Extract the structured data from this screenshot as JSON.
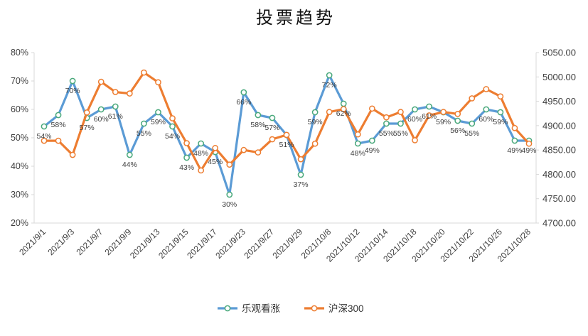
{
  "chart_data": {
    "type": "line",
    "title": "投票趋势",
    "x_tick_labels": [
      "2021/9/1",
      "2021/9/3",
      "2021/9/7",
      "2021/9/9",
      "2021/9/13",
      "2021/9/15",
      "2021/9/17",
      "2021/9/23",
      "2021/9/27",
      "2021/9/29",
      "2021/10/8",
      "2021/10/12",
      "2021/10/14",
      "2021/10/18",
      "2021/10/20",
      "2021/10/22",
      "2021/10/26",
      "2021/10/28"
    ],
    "categories": [
      "2021/9/1",
      "2021/9/2",
      "2021/9/3",
      "2021/9/6",
      "2021/9/7",
      "2021/9/8",
      "2021/9/9",
      "2021/9/10",
      "2021/9/13",
      "2021/9/14",
      "2021/9/15",
      "2021/9/16",
      "2021/9/17",
      "2021/9/22",
      "2021/9/23",
      "2021/9/24",
      "2021/9/27",
      "2021/9/28",
      "2021/9/29",
      "2021/9/30",
      "2021/10/8",
      "2021/10/11",
      "2021/10/12",
      "2021/10/13",
      "2021/10/14",
      "2021/10/15",
      "2021/10/18",
      "2021/10/19",
      "2021/10/20",
      "2021/10/21",
      "2021/10/22",
      "2021/10/25",
      "2021/10/26",
      "2021/10/27",
      "2021/10/28"
    ],
    "x_tick_every": 2,
    "series": [
      {
        "name": "乐观看涨",
        "axis": "left",
        "unit": "%",
        "color": "#5B9BD5",
        "marker_color": "#4AA97C",
        "show_labels": true,
        "values": [
          54,
          58,
          70,
          57,
          60,
          61,
          44,
          55,
          59,
          54,
          43,
          48,
          45,
          30,
          66,
          58,
          57,
          51,
          37,
          59,
          72,
          62,
          48,
          49,
          55,
          55,
          60,
          61,
          59,
          56,
          55,
          60,
          59,
          49,
          49
        ]
      },
      {
        "name": "沪深300",
        "axis": "right",
        "color": "#ED7D31",
        "marker_color": "#ED7D31",
        "show_labels": false,
        "values": [
          4869,
          4869,
          4840,
          4927,
          4990,
          4969,
          4966,
          5009,
          4989,
          4915,
          4864,
          4808,
          4854,
          4820,
          4850,
          4845,
          4872,
          4881,
          4831,
          4863,
          4928,
          4934,
          4882,
          4935,
          4917,
          4928,
          4870,
          4921,
          4928,
          4924,
          4956,
          4975,
          4960,
          4895,
          4863
        ]
      }
    ],
    "axes": {
      "left": {
        "min": 20,
        "max": 80,
        "step": 10,
        "format": "percent",
        "tick_labels": [
          "80%",
          "70%",
          "60%",
          "50%",
          "40%",
          "30%",
          "20%"
        ]
      },
      "right": {
        "min": 4700,
        "max": 5050,
        "step": 50,
        "tick_labels": [
          "5050.00",
          "5000.00",
          "4950.00",
          "4900.00",
          "4850.00",
          "4800.00",
          "4750.00",
          "4700.00"
        ]
      }
    },
    "grid": false,
    "legend_position": "bottom"
  },
  "legend": {
    "items": [
      {
        "label": "乐观看涨",
        "line_color": "#5B9BD5",
        "marker_color": "#4AA97C"
      },
      {
        "label": "沪深300",
        "line_color": "#ED7D31",
        "marker_color": "#ED7D31"
      }
    ]
  },
  "style": {
    "axis_line_color": "#D9D9D9",
    "text_color": "#3F3F3F",
    "background": "#FFFFFF"
  }
}
